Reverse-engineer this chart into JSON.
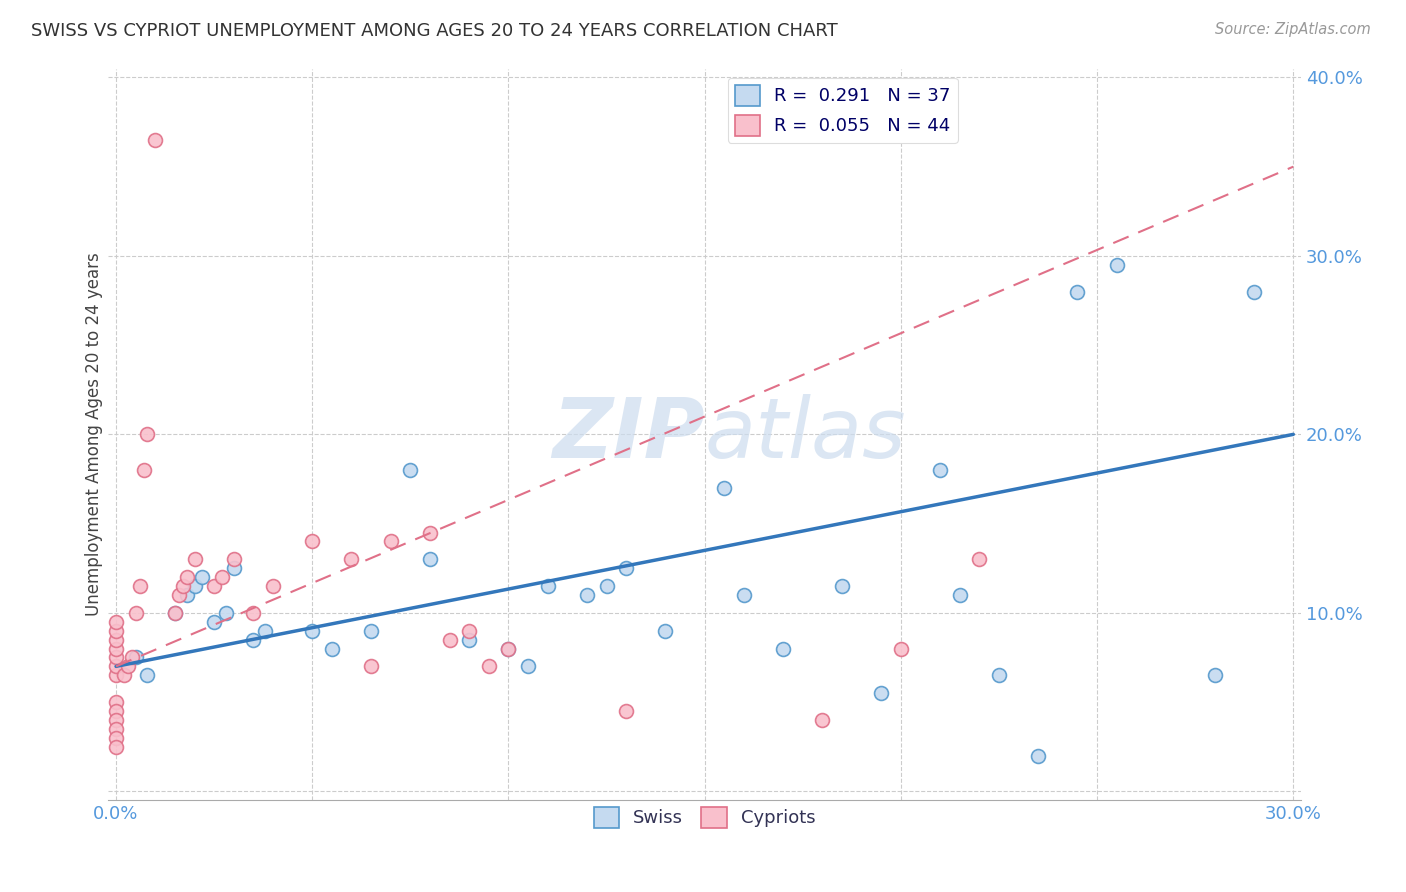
{
  "title": "SWISS VS CYPRIOT UNEMPLOYMENT AMONG AGES 20 TO 24 YEARS CORRELATION CHART",
  "source": "Source: ZipAtlas.com",
  "ylabel": "Unemployment Among Ages 20 to 24 years",
  "xlim": [
    -0.002,
    0.302
  ],
  "ylim": [
    -0.005,
    0.405
  ],
  "swiss_R": 0.291,
  "swiss_N": 37,
  "cypriot_R": 0.055,
  "cypriot_N": 44,
  "swiss_fill_color": "#c5daf0",
  "cypriot_fill_color": "#f9c0cc",
  "swiss_edge_color": "#5599cc",
  "cypriot_edge_color": "#e07088",
  "swiss_line_color": "#3377bb",
  "cypriot_line_color": "#e07088",
  "grid_color": "#cccccc",
  "tick_color": "#5599dd",
  "watermark_color": "#ccdcee",
  "swiss_x": [
    0.005,
    0.008,
    0.015,
    0.018,
    0.02,
    0.022,
    0.025,
    0.028,
    0.03,
    0.035,
    0.038,
    0.05,
    0.055,
    0.065,
    0.075,
    0.08,
    0.09,
    0.1,
    0.105,
    0.11,
    0.12,
    0.125,
    0.13,
    0.14,
    0.155,
    0.16,
    0.17,
    0.185,
    0.195,
    0.21,
    0.215,
    0.225,
    0.235,
    0.245,
    0.255,
    0.28,
    0.29
  ],
  "swiss_y": [
    0.075,
    0.065,
    0.1,
    0.11,
    0.115,
    0.12,
    0.095,
    0.1,
    0.125,
    0.085,
    0.09,
    0.09,
    0.08,
    0.09,
    0.18,
    0.13,
    0.085,
    0.08,
    0.07,
    0.115,
    0.11,
    0.115,
    0.125,
    0.09,
    0.17,
    0.11,
    0.08,
    0.115,
    0.055,
    0.18,
    0.11,
    0.065,
    0.02,
    0.28,
    0.295,
    0.065,
    0.28
  ],
  "cypriot_x": [
    0.0,
    0.0,
    0.0,
    0.0,
    0.0,
    0.0,
    0.0,
    0.0,
    0.0,
    0.0,
    0.0,
    0.0,
    0.0,
    0.002,
    0.003,
    0.004,
    0.005,
    0.006,
    0.007,
    0.008,
    0.01,
    0.015,
    0.016,
    0.017,
    0.018,
    0.02,
    0.025,
    0.027,
    0.03,
    0.035,
    0.04,
    0.05,
    0.06,
    0.065,
    0.07,
    0.08,
    0.085,
    0.09,
    0.095,
    0.1,
    0.13,
    0.18,
    0.2,
    0.22
  ],
  "cypriot_y": [
    0.065,
    0.07,
    0.075,
    0.08,
    0.085,
    0.09,
    0.095,
    0.05,
    0.045,
    0.04,
    0.035,
    0.03,
    0.025,
    0.065,
    0.07,
    0.075,
    0.1,
    0.115,
    0.18,
    0.2,
    0.365,
    0.1,
    0.11,
    0.115,
    0.12,
    0.13,
    0.115,
    0.12,
    0.13,
    0.1,
    0.115,
    0.14,
    0.13,
    0.07,
    0.14,
    0.145,
    0.085,
    0.09,
    0.07,
    0.08,
    0.045,
    0.04,
    0.08,
    0.13
  ],
  "swiss_trend": [
    0.07,
    0.2
  ],
  "cypriot_trend": [
    0.07,
    0.35
  ]
}
